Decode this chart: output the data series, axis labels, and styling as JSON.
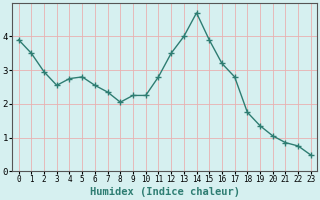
{
  "x": [
    0,
    1,
    2,
    3,
    4,
    5,
    6,
    7,
    8,
    9,
    10,
    11,
    12,
    13,
    14,
    15,
    16,
    17,
    18,
    19,
    20,
    21,
    22,
    23
  ],
  "y": [
    3.9,
    3.5,
    2.95,
    2.55,
    2.75,
    2.8,
    2.55,
    2.35,
    2.05,
    2.25,
    2.25,
    2.8,
    3.5,
    4.0,
    4.7,
    3.9,
    3.2,
    2.8,
    1.75,
    1.35,
    1.05,
    0.85,
    0.75,
    0.48
  ],
  "line_color": "#2e7d72",
  "marker": "+",
  "marker_size": 4,
  "marker_edge_width": 1.0,
  "line_width": 1.0,
  "xlabel": "Humidex (Indice chaleur)",
  "xlabel_fontsize": 7.5,
  "ylim": [
    0,
    5
  ],
  "xlim": [
    -0.5,
    23.5
  ],
  "yticks": [
    0,
    1,
    2,
    3,
    4
  ],
  "xticks": [
    0,
    1,
    2,
    3,
    4,
    5,
    6,
    7,
    8,
    9,
    10,
    11,
    12,
    13,
    14,
    15,
    16,
    17,
    18,
    19,
    20,
    21,
    22,
    23
  ],
  "grid_color": "#e8b0b0",
  "bg_color": "#d6f0f0",
  "tick_fontsize": 5.5,
  "ytick_fontsize": 6.5
}
